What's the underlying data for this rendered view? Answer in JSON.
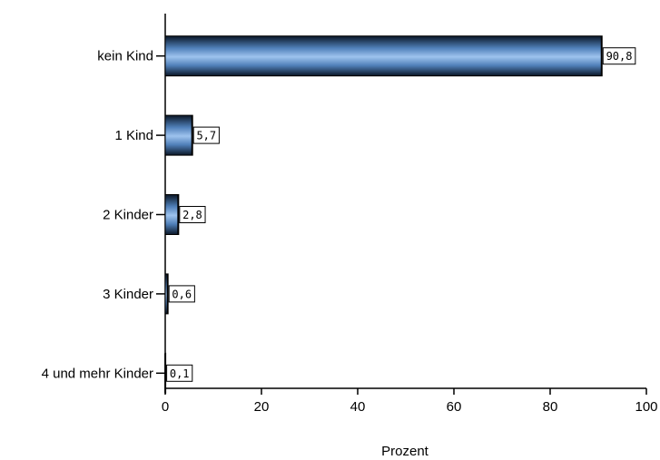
{
  "chart_data": {
    "type": "bar",
    "orientation": "horizontal",
    "categories": [
      "kein Kind",
      "1 Kind",
      "2 Kinder",
      "3 Kinder",
      "4 und mehr Kinder"
    ],
    "values": [
      90.8,
      5.7,
      2.8,
      0.6,
      0.1
    ],
    "value_labels": [
      "90,8",
      "5,7",
      "2,8",
      "0,6",
      "0,1"
    ],
    "xlabel": "Prozent",
    "ylabel": "",
    "xlim": [
      0,
      100
    ],
    "xticks": [
      "0",
      "20",
      "40",
      "60",
      "80",
      "100"
    ],
    "grid": false,
    "legend": "none",
    "colors": {
      "bar_light": "#9ec3ee",
      "bar_mid": "#4f7fb8",
      "bar_dark": "#0a1626",
      "axis": "#000000"
    }
  }
}
